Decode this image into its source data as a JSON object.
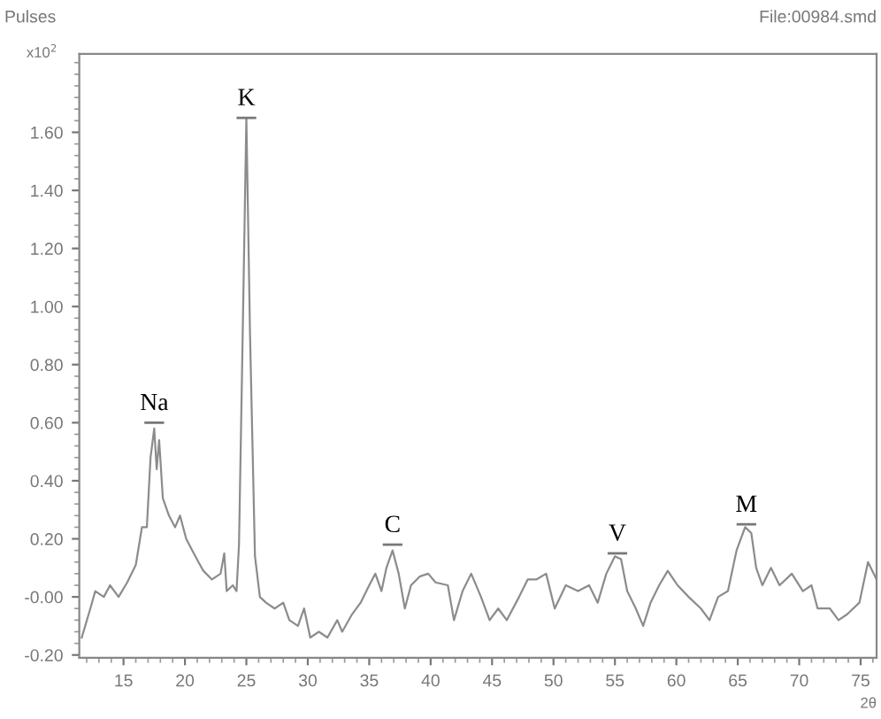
{
  "chart_data": {
    "type": "line",
    "ylabel": "Pulses",
    "xlabel": "2θ",
    "annotations": [
      "x10$^{2}$",
      "File:00984.smd",
      {
        "text": "Na",
        "x": 17.5,
        "y": 0.6
      },
      {
        "text": "K",
        "x": 25.0,
        "y": 1.65
      },
      {
        "text": "C",
        "x": 36.9,
        "y": 0.18
      },
      {
        "text": "V",
        "x": 55.2,
        "y": 0.15
      },
      {
        "text": "M",
        "x": 65.7,
        "y": 0.25
      }
    ],
    "series": [
      {
        "color": "#8c8c8c",
        "x": [
          11.6,
          12.3,
          12.7,
          13.4,
          13.9,
          14.6,
          15.3,
          16.0,
          16.5,
          16.9,
          17.2,
          17.5,
          17.7,
          17.9,
          18.2,
          18.7,
          19.2,
          19.6,
          20.1,
          20.6,
          21.1,
          21.5,
          22.2,
          22.9,
          23.2,
          23.4,
          23.9,
          24.2,
          24.4,
          24.7,
          25.0,
          25.3,
          25.7,
          26.1,
          26.6,
          27.3,
          28.0,
          28.5,
          29.2,
          29.7,
          30.2,
          30.9,
          31.6,
          32.4,
          32.8,
          33.6,
          34.3,
          35.0,
          35.5,
          36.0,
          36.4,
          36.9,
          37.4,
          37.9,
          38.4,
          39.1,
          39.8,
          40.4,
          41.4,
          41.9,
          42.6,
          43.3,
          44.1,
          44.8,
          45.5,
          46.2,
          47.2,
          47.9,
          48.6,
          49.4,
          50.1,
          51.0,
          52.0,
          52.9,
          53.6,
          54.3,
          55.0,
          55.5,
          56.0,
          56.7,
          57.3,
          57.9,
          58.6,
          59.3,
          60.1,
          61.0,
          62.0,
          62.7,
          63.4,
          64.2,
          64.9,
          65.6,
          66.1,
          66.5,
          67.0,
          67.7,
          68.4,
          69.4,
          70.3,
          71.0,
          71.5,
          72.5,
          73.2,
          73.9,
          74.9,
          75.6,
          76.3
        ],
        "values": [
          -0.14,
          -0.04,
          0.02,
          0.0,
          0.04,
          0.0,
          0.05,
          0.11,
          0.24,
          0.24,
          0.48,
          0.58,
          0.44,
          0.54,
          0.34,
          0.28,
          0.24,
          0.28,
          0.2,
          0.16,
          0.12,
          0.09,
          0.06,
          0.08,
          0.15,
          0.02,
          0.04,
          0.02,
          0.18,
          0.9,
          1.65,
          0.9,
          0.14,
          0.0,
          -0.02,
          -0.04,
          -0.02,
          -0.08,
          -0.1,
          -0.04,
          -0.14,
          -0.12,
          -0.14,
          -0.08,
          -0.12,
          -0.06,
          -0.02,
          0.04,
          0.08,
          0.02,
          0.1,
          0.16,
          0.08,
          -0.04,
          0.04,
          0.07,
          0.08,
          0.05,
          0.04,
          -0.08,
          0.02,
          0.08,
          0.0,
          -0.08,
          -0.04,
          -0.08,
          0.0,
          0.06,
          0.06,
          0.08,
          -0.04,
          0.04,
          0.02,
          0.04,
          -0.02,
          0.08,
          0.14,
          0.13,
          0.02,
          -0.04,
          -0.1,
          -0.02,
          0.04,
          0.09,
          0.04,
          0.0,
          -0.04,
          -0.08,
          0.0,
          0.02,
          0.16,
          0.24,
          0.22,
          0.1,
          0.04,
          0.1,
          0.04,
          0.08,
          0.02,
          0.04,
          -0.04,
          -0.04,
          -0.08,
          -0.06,
          -0.02,
          0.12,
          0.06
        ]
      }
    ],
    "xlim": [
      11.4,
      76.3
    ],
    "ylim": [
      -0.21,
      1.87
    ],
    "xticks": [
      15,
      20,
      25,
      30,
      35,
      40,
      45,
      50,
      55,
      60,
      65,
      70,
      75
    ],
    "yticks": [
      {
        "value": -0.2,
        "label": "-0.20"
      },
      {
        "value": 0,
        "label": "-0.00"
      },
      {
        "value": 0.2,
        "label": "0.20"
      },
      {
        "value": 0.4,
        "label": "0.40"
      },
      {
        "value": 0.6,
        "label": "0.60"
      },
      {
        "value": 0.8,
        "label": "0.80"
      },
      {
        "value": 1.0,
        "label": "1.00"
      },
      {
        "value": 1.2,
        "label": "1.20"
      },
      {
        "value": 1.4,
        "label": "1.40"
      },
      {
        "value": 1.6,
        "label": "1.60"
      }
    ],
    "marker": "none",
    "line_style": "solid",
    "grid": false,
    "legend": false
  }
}
